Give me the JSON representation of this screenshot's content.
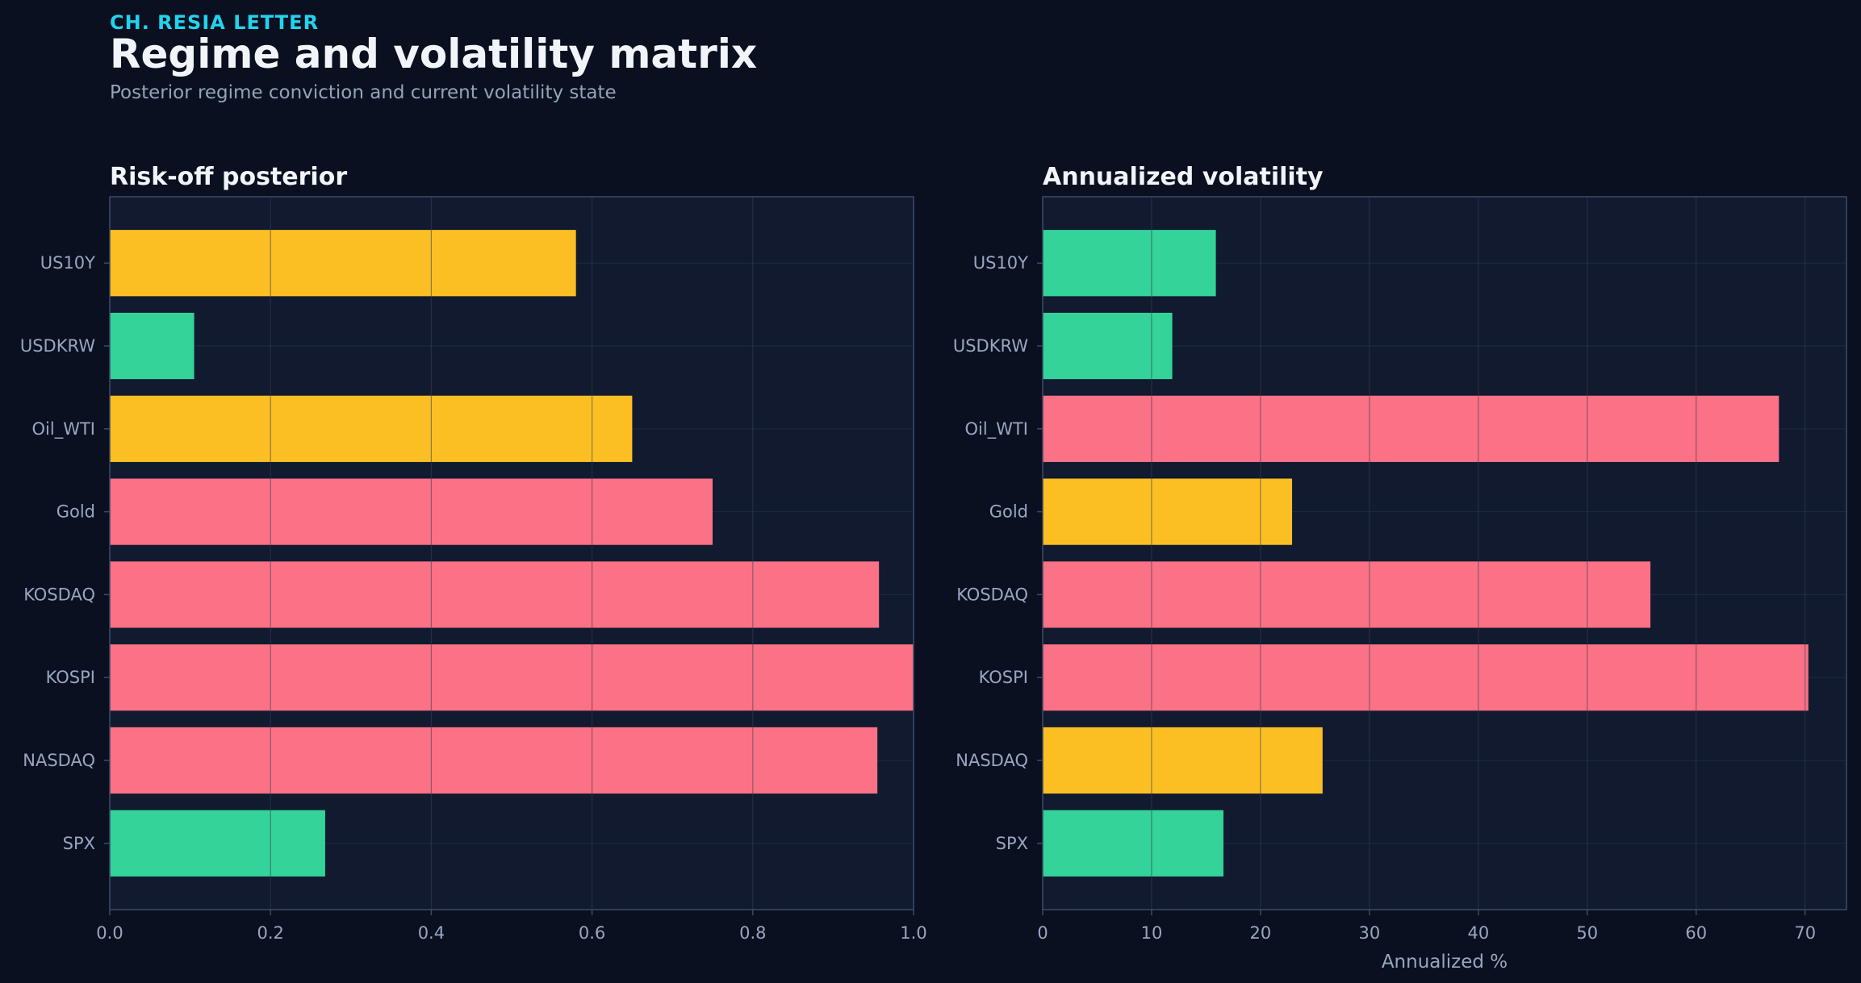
{
  "header": {
    "eyebrow": "CH. RESIA LETTER",
    "title": "Regime and volatility matrix",
    "subtitle": "Posterior regime conviction and current volatility state"
  },
  "colors": {
    "background": "#0a1020",
    "panel": "#111a2e",
    "accent": "#22d3ee",
    "risk_on": "#34d399",
    "neutral": "#fbbf24",
    "risk_off": "#fb7185"
  },
  "chart_data": [
    {
      "type": "bar",
      "orientation": "horizontal",
      "title": "Risk-off posterior",
      "xlabel": "",
      "ylabel": "",
      "categories": [
        "US10Y",
        "USDKRW",
        "Oil_WTI",
        "Gold",
        "KOSDAQ",
        "KOSPI",
        "NASDAQ",
        "SPX"
      ],
      "values": [
        0.58,
        0.105,
        0.65,
        0.75,
        0.957,
        1.0,
        0.955,
        0.268
      ],
      "bar_colors": [
        "#fbbf24",
        "#34d399",
        "#fbbf24",
        "#fb7185",
        "#fb7185",
        "#fb7185",
        "#fb7185",
        "#34d399"
      ],
      "xlim": [
        0,
        1.0
      ],
      "xticks": [
        0.0,
        0.2,
        0.4,
        0.6,
        0.8,
        1.0
      ],
      "xtick_labels": [
        "0.0",
        "0.2",
        "0.4",
        "0.6",
        "0.8",
        "1.0"
      ],
      "grid": true
    },
    {
      "type": "bar",
      "orientation": "horizontal",
      "title": "Annualized volatility",
      "xlabel": "Annualized %",
      "ylabel": "",
      "categories": [
        "US10Y",
        "USDKRW",
        "Oil_WTI",
        "Gold",
        "KOSDAQ",
        "KOSPI",
        "NASDAQ",
        "SPX"
      ],
      "values": [
        15.9,
        11.9,
        67.6,
        22.9,
        55.8,
        70.3,
        25.7,
        16.6
      ],
      "bar_colors": [
        "#34d399",
        "#34d399",
        "#fb7185",
        "#fbbf24",
        "#fb7185",
        "#fb7185",
        "#fbbf24",
        "#34d399"
      ],
      "xlim": [
        0,
        73.8
      ],
      "xticks": [
        0,
        10,
        20,
        30,
        40,
        50,
        60,
        70
      ],
      "xtick_labels": [
        "0",
        "10",
        "20",
        "30",
        "40",
        "50",
        "60",
        "70"
      ],
      "grid": true
    }
  ]
}
